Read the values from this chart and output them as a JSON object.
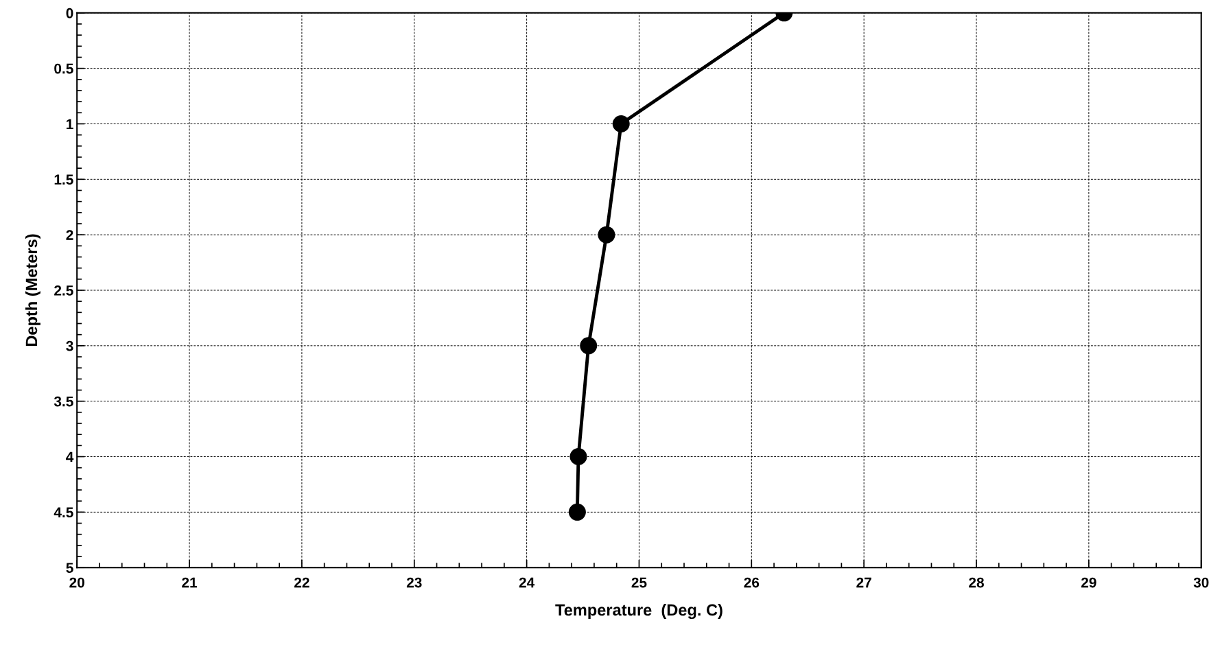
{
  "chart_data": {
    "type": "line",
    "xlabel": "Temperature  (Deg. C)",
    "ylabel": "Depth (Meters)",
    "x": [
      26.29,
      24.84,
      24.71,
      24.55,
      24.46,
      24.45
    ],
    "series": [
      {
        "color": "#000000",
        "values": [
          0,
          1,
          2,
          3,
          4,
          4.5
        ]
      }
    ],
    "xlim": [
      20,
      30
    ],
    "xticks": [
      20,
      21,
      22,
      23,
      24,
      25,
      26,
      27,
      28,
      29,
      30
    ],
    "ylim": [
      5,
      0
    ],
    "yticks": [
      0,
      0.5,
      1,
      1.5,
      2,
      2.5,
      3,
      3.5,
      4,
      4.5,
      5
    ],
    "grid": true,
    "marker": "circle",
    "line_style": "solid"
  }
}
